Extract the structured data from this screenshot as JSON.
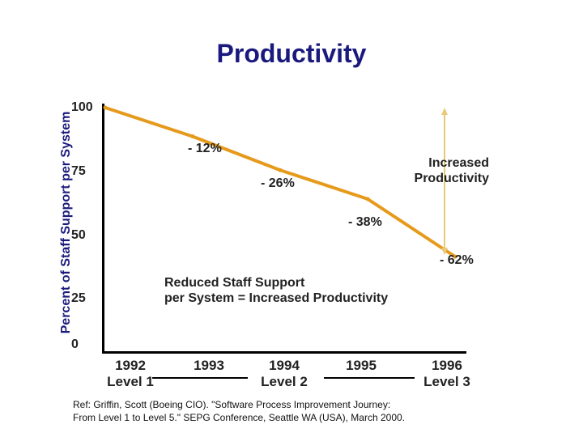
{
  "title": "Productivity",
  "chart_data": {
    "type": "line",
    "title": "Productivity",
    "ylabel": "Percent of Staff Support per System",
    "xlabel": "",
    "ylim": [
      0,
      100
    ],
    "yticks": [
      "100",
      "75",
      "50",
      "25",
      "0"
    ],
    "x": [
      1992,
      1993,
      1994,
      1995,
      1996
    ],
    "series": [
      {
        "name": "Staff Support per System",
        "values": [
          100,
          88,
          74,
          62,
          38
        ],
        "color": "#e69a1b"
      }
    ],
    "point_labels": [
      "",
      "- 12%",
      "- 26%",
      "- 38%",
      "- 62%"
    ],
    "x_labels": [
      {
        "year": "1992",
        "level": "Level 1"
      },
      {
        "year": "1993",
        "level": ""
      },
      {
        "year": "1994",
        "level": "Level 2"
      },
      {
        "year": "1995",
        "level": ""
      },
      {
        "year": "1996",
        "level": "Level 3"
      }
    ],
    "arrow_label_line1": "Increased",
    "arrow_label_line2": "Productivity",
    "arrow_color": "#e8c97a",
    "note_line1": "Reduced Staff Support",
    "note_line2": "per System = Increased Productivity"
  },
  "reference": {
    "line1": "Ref: Griffin, Scott (Boeing CIO). \"Software Process Improvement Journey:",
    "line2": "From Level 1 to Level 5.\" SEPG Conference, Seattle WA (USA), March 2000."
  }
}
